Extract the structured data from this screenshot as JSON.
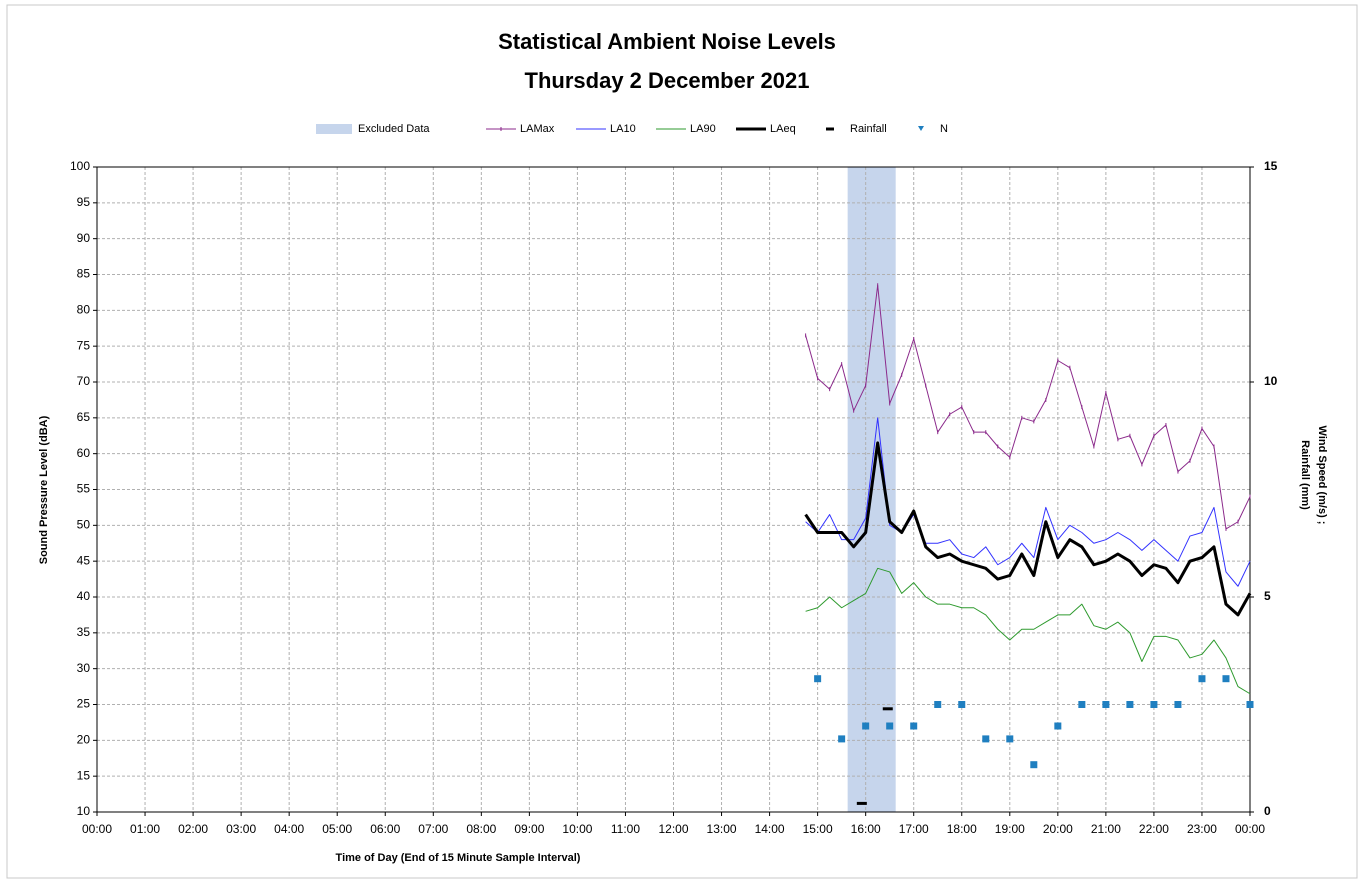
{
  "chart_data": {
    "type": "line",
    "title": [
      "Statistical Ambient Noise Levels",
      "Thursday 2 December 2021"
    ],
    "x_label": "Time of Day (End of 15 Minute Sample Interval)",
    "y_label": "Sound Pressure Level (dBA)",
    "y2_label": [
      "Wind Speed (m/s) ;",
      "Rainfall (mm)"
    ],
    "xlim": [
      0,
      24
    ],
    "xticks": [
      {
        "value": 0,
        "label": "00:00"
      },
      {
        "value": 1,
        "label": "01:00"
      },
      {
        "value": 2,
        "label": "02:00"
      },
      {
        "value": 3,
        "label": "03:00"
      },
      {
        "value": 4,
        "label": "04:00"
      },
      {
        "value": 5,
        "label": "05:00"
      },
      {
        "value": 6,
        "label": "06:00"
      },
      {
        "value": 7,
        "label": "07:00"
      },
      {
        "value": 8,
        "label": "08:00"
      },
      {
        "value": 9,
        "label": "09:00"
      },
      {
        "value": 10,
        "label": "10:00"
      },
      {
        "value": 11,
        "label": "11:00"
      },
      {
        "value": 12,
        "label": "12:00"
      },
      {
        "value": 13,
        "label": "13:00"
      },
      {
        "value": 14,
        "label": "14:00"
      },
      {
        "value": 15,
        "label": "15:00"
      },
      {
        "value": 16,
        "label": "16:00"
      },
      {
        "value": 17,
        "label": "17:00"
      },
      {
        "value": 18,
        "label": "18:00"
      },
      {
        "value": 19,
        "label": "19:00"
      },
      {
        "value": 20,
        "label": "20:00"
      },
      {
        "value": 21,
        "label": "21:00"
      },
      {
        "value": 22,
        "label": "22:00"
      },
      {
        "value": 23,
        "label": "23:00"
      },
      {
        "value": 24,
        "label": "00:00"
      }
    ],
    "ylim": [
      10,
      100
    ],
    "yticks": [
      10,
      15,
      20,
      25,
      30,
      35,
      40,
      45,
      50,
      55,
      60,
      65,
      70,
      75,
      80,
      85,
      90,
      95,
      100
    ],
    "y2lim": [
      0,
      15
    ],
    "y2ticks": [
      0,
      5,
      10,
      15
    ],
    "grid": true,
    "legend": "top",
    "excluded": {
      "name": "Excluded Data",
      "color": "#c6d5ec",
      "x": [
        15.625,
        16.625
      ]
    },
    "x": [
      14.75,
      15,
      15.25,
      15.5,
      15.75,
      16,
      16.25,
      16.5,
      16.75,
      17,
      17.25,
      17.5,
      17.75,
      18,
      18.25,
      18.5,
      18.75,
      19,
      19.25,
      19.5,
      19.75,
      20,
      20.25,
      20.5,
      20.75,
      21,
      21.25,
      21.5,
      21.75,
      22,
      22.25,
      22.5,
      22.75,
      23,
      23.25,
      23.5,
      23.75,
      24
    ],
    "series": [
      {
        "name": "LAMax",
        "color": "#8b2a8b",
        "style": "line-marker",
        "width": 1,
        "values": [
          76.5,
          70.5,
          69,
          72.5,
          66,
          69.5,
          83.5,
          67,
          71,
          76,
          69.5,
          63,
          65.5,
          66.5,
          63,
          63,
          61,
          59.5,
          65,
          64.5,
          67.5,
          73,
          72,
          66.5,
          61,
          68.5,
          62,
          62.5,
          58.5,
          62.5,
          64,
          57.5,
          59,
          63.5,
          61,
          49.5,
          50.5,
          54
        ]
      },
      {
        "name": "LA10",
        "color": "#3333ff",
        "style": "line",
        "width": 1,
        "values": [
          50.5,
          49,
          51.5,
          48,
          48,
          51,
          65,
          50,
          49,
          51.5,
          47.5,
          47.5,
          48,
          46,
          45.5,
          47,
          44.5,
          45.5,
          47.5,
          45.5,
          52.5,
          48,
          50,
          49,
          47.5,
          48,
          49,
          48,
          46.5,
          48,
          46.5,
          45,
          48.5,
          49,
          52.5,
          43.5,
          41.5,
          45
        ]
      },
      {
        "name": "LA90",
        "color": "#2e9a2e",
        "style": "line",
        "width": 1,
        "values": [
          38,
          38.5,
          40,
          38.5,
          39.5,
          40.5,
          44,
          43.5,
          40.5,
          42,
          40,
          39,
          39,
          38.5,
          38.5,
          37.5,
          35.5,
          34,
          35.5,
          35.5,
          36.5,
          37.5,
          37.5,
          39,
          36,
          35.5,
          36.5,
          35,
          31,
          34.5,
          34.5,
          34,
          31.5,
          32,
          34,
          31.5,
          27.5,
          26.5
        ]
      },
      {
        "name": "LAeq",
        "color": "#000000",
        "style": "line",
        "width": 3,
        "values": [
          51.5,
          49,
          49,
          49,
          47,
          49,
          61.5,
          50.5,
          49,
          52,
          47,
          45.5,
          46,
          45,
          44.5,
          44,
          42.5,
          43,
          46,
          43,
          50.5,
          45.5,
          48,
          47,
          44.5,
          45,
          46,
          45,
          43,
          44.5,
          44,
          42,
          45,
          45.5,
          47,
          39,
          37.5,
          40.5
        ]
      },
      {
        "name": "Rainfall",
        "color": "#000000",
        "style": "dash",
        "axis": "y2",
        "x": [
          15.92,
          16.46
        ],
        "values": [
          0.2,
          2.4
        ]
      },
      {
        "name": "N",
        "color": "#1f7fc0",
        "style": "square",
        "axis": "y2",
        "x": [
          15,
          15.5,
          16,
          16.5,
          17,
          17.5,
          18,
          18.5,
          19,
          19.5,
          20,
          20.5,
          21,
          21.5,
          22,
          22.5,
          23,
          23.5,
          24
        ],
        "values": [
          3.1,
          1.7,
          2.0,
          2.0,
          2.0,
          2.5,
          2.5,
          1.7,
          1.7,
          1.1,
          2.0,
          2.5,
          2.5,
          2.5,
          2.5,
          2.5,
          3.1,
          3.1,
          2.5
        ]
      }
    ]
  }
}
